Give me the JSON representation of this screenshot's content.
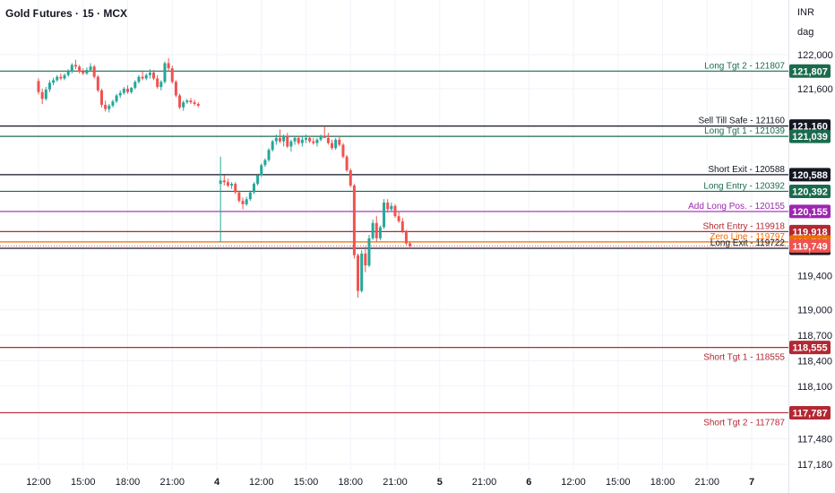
{
  "header": {
    "title": "Gold Futures · 15 · MCX",
    "currency": "INR",
    "timeframe": "dag"
  },
  "colors": {
    "up": "#26a69a",
    "down": "#ef5350",
    "green_line": "#1b6b4e",
    "black_line": "#131722",
    "purple_line": "#9c27b0",
    "red_line": "#b22833",
    "orange_line": "#ef6c00",
    "grid": "#f0f3fa"
  },
  "chart_data": {
    "type": "candlestick",
    "title": "Gold Futures · 15 · MCX",
    "ylim": [
      117000,
      122300
    ],
    "y_ticks": [
      122000,
      121600,
      119400,
      119000,
      118700,
      118400,
      118100,
      117480,
      117180
    ],
    "y_tick_labels": [
      "122,000",
      "121,600",
      "119,400",
      "119,000",
      "118,700",
      "118,400",
      "118,100",
      "117,480",
      "117,180"
    ],
    "x_ticks": [
      {
        "label": "12:00",
        "t": 0
      },
      {
        "label": "15:00",
        "t": 12
      },
      {
        "label": "18:00",
        "t": 24
      },
      {
        "label": "21:00",
        "t": 36
      },
      {
        "label": "4",
        "t": 48
      },
      {
        "label": "12:00",
        "t": 60
      },
      {
        "label": "15:00",
        "t": 72
      },
      {
        "label": "18:00",
        "t": 84
      },
      {
        "label": "21:00",
        "t": 96
      },
      {
        "label": "5",
        "t": 108
      },
      {
        "label": "21:00",
        "t": 120
      },
      {
        "label": "6",
        "t": 132
      },
      {
        "label": "12:00",
        "t": 144
      },
      {
        "label": "15:00",
        "t": 156
      },
      {
        "label": "18:00",
        "t": 168
      },
      {
        "label": "21:00",
        "t": 180
      },
      {
        "label": "7",
        "t": 192
      }
    ],
    "levels": [
      {
        "label": "Long Tgt 2 - 121807",
        "value": 121807,
        "tag": "121,807",
        "color": "green"
      },
      {
        "label": "Sell Till Safe - 121160",
        "value": 121160,
        "tag": "121,160",
        "color": "black"
      },
      {
        "label": "Long Tgt 1 - 121039",
        "value": 121039,
        "tag": "121,039",
        "color": "green"
      },
      {
        "label": "Short Exit - 120588",
        "value": 120588,
        "tag": "120,588",
        "color": "black"
      },
      {
        "label": "Long Entry - 120392",
        "value": 120392,
        "tag": "120,392",
        "color": "green"
      },
      {
        "label": "Add Long Pos. - 120155",
        "value": 120155,
        "tag": "120,155",
        "color": "purple"
      },
      {
        "label": "Short Entry - 119918",
        "value": 119918,
        "tag": "119,918",
        "color": "red"
      },
      {
        "label": "Zero Line - 119797",
        "value": 119797,
        "tag": "119,797",
        "color": "orange"
      },
      {
        "label": "Long Exit - 119722",
        "value": 119722,
        "tag": "119,722",
        "color": "black"
      },
      {
        "label": "Short Tgt 1 - 118555",
        "value": 118555,
        "tag": "118,555",
        "color": "red"
      },
      {
        "label": "Short Tgt 2 - 117787",
        "value": 117787,
        "tag": "117,787",
        "color": "red"
      }
    ],
    "current_price": {
      "value": 119749,
      "tag": "119,749"
    },
    "candles": [
      [
        0,
        121690,
        121720,
        121530,
        121560
      ],
      [
        1,
        121560,
        121600,
        121420,
        121480
      ],
      [
        2,
        121480,
        121620,
        121460,
        121590
      ],
      [
        3,
        121590,
        121700,
        121560,
        121670
      ],
      [
        4,
        121670,
        121730,
        121640,
        121700
      ],
      [
        5,
        121700,
        121760,
        121680,
        121740
      ],
      [
        6,
        121740,
        121780,
        121700,
        121720
      ],
      [
        7,
        121720,
        121780,
        121700,
        121760
      ],
      [
        8,
        121760,
        121830,
        121740,
        121800
      ],
      [
        9,
        121800,
        121900,
        121780,
        121880
      ],
      [
        10,
        121880,
        121940,
        121830,
        121860
      ],
      [
        11,
        121860,
        121880,
        121780,
        121800
      ],
      [
        12,
        121800,
        121840,
        121760,
        121780
      ],
      [
        13,
        121780,
        121850,
        121760,
        121820
      ],
      [
        14,
        121820,
        121900,
        121800,
        121860
      ],
      [
        15,
        121860,
        121880,
        121720,
        121740
      ],
      [
        16,
        121740,
        121760,
        121560,
        121580
      ],
      [
        17,
        121580,
        121600,
        121380,
        121410
      ],
      [
        18,
        121410,
        121460,
        121330,
        121360
      ],
      [
        19,
        121360,
        121420,
        121320,
        121400
      ],
      [
        20,
        121400,
        121470,
        121380,
        121450
      ],
      [
        21,
        121450,
        121540,
        121430,
        121520
      ],
      [
        22,
        121520,
        121580,
        121490,
        121550
      ],
      [
        23,
        121550,
        121620,
        121530,
        121600
      ],
      [
        24,
        121600,
        121640,
        121540,
        121560
      ],
      [
        25,
        121560,
        121620,
        121540,
        121610
      ],
      [
        26,
        121610,
        121700,
        121590,
        121680
      ],
      [
        27,
        121680,
        121760,
        121660,
        121740
      ],
      [
        28,
        121740,
        121800,
        121700,
        121720
      ],
      [
        29,
        121720,
        121780,
        121700,
        121760
      ],
      [
        30,
        121760,
        121830,
        121720,
        121790
      ],
      [
        31,
        121790,
        121820,
        121700,
        121720
      ],
      [
        32,
        121720,
        121760,
        121600,
        121620
      ],
      [
        33,
        121620,
        121700,
        121580,
        121680
      ],
      [
        34,
        121680,
        121920,
        121660,
        121900
      ],
      [
        35,
        121900,
        121960,
        121800,
        121840
      ],
      [
        36,
        121840,
        121870,
        121660,
        121680
      ],
      [
        37,
        121680,
        121700,
        121500,
        121520
      ],
      [
        38,
        121520,
        121540,
        121360,
        121380
      ],
      [
        39,
        121380,
        121460,
        121340,
        121440
      ],
      [
        40,
        121440,
        121480,
        121420,
        121460
      ],
      [
        41,
        121460,
        121490,
        121420,
        121440
      ],
      [
        42,
        121440,
        121470,
        121400,
        121420
      ],
      [
        43,
        121420,
        121440,
        121380,
        121400
      ],
      [
        49,
        120480,
        120800,
        119790,
        120520
      ],
      [
        50,
        120520,
        120580,
        120460,
        120500
      ],
      [
        51,
        120500,
        120540,
        120440,
        120460
      ],
      [
        52,
        120460,
        120500,
        120420,
        120480
      ],
      [
        53,
        120480,
        120500,
        120360,
        120380
      ],
      [
        54,
        120380,
        120400,
        120260,
        120280
      ],
      [
        55,
        120280,
        120320,
        120180,
        120240
      ],
      [
        56,
        120240,
        120330,
        120220,
        120300
      ],
      [
        57,
        120300,
        120400,
        120280,
        120380
      ],
      [
        58,
        120380,
        120500,
        120360,
        120480
      ],
      [
        59,
        120480,
        120600,
        120460,
        120580
      ],
      [
        60,
        120580,
        120720,
        120560,
        120700
      ],
      [
        61,
        120700,
        120780,
        120680,
        120760
      ],
      [
        62,
        120760,
        120900,
        120740,
        120880
      ],
      [
        63,
        120880,
        121000,
        120860,
        120980
      ],
      [
        64,
        120980,
        121060,
        120940,
        121020
      ],
      [
        65,
        121020,
        121120,
        120960,
        120980
      ],
      [
        66,
        120980,
        121060,
        120920,
        121040
      ],
      [
        67,
        121040,
        121080,
        120900,
        120920
      ],
      [
        68,
        120920,
        121000,
        120860,
        120980
      ],
      [
        69,
        120980,
        121040,
        120940,
        121020
      ],
      [
        70,
        121020,
        121040,
        120940,
        120960
      ],
      [
        71,
        120960,
        121040,
        120920,
        121000
      ],
      [
        72,
        121000,
        121060,
        120960,
        121020
      ],
      [
        73,
        121020,
        121040,
        120960,
        120980
      ],
      [
        74,
        120980,
        121020,
        120940,
        120960
      ],
      [
        75,
        120960,
        121020,
        120920,
        121000
      ],
      [
        76,
        121000,
        121060,
        120980,
        121040
      ],
      [
        77,
        121040,
        121160,
        121020,
        121020
      ],
      [
        78,
        121020,
        121080,
        120940,
        120960
      ],
      [
        79,
        120960,
        121000,
        120880,
        120900
      ],
      [
        80,
        120900,
        121020,
        120880,
        121000
      ],
      [
        81,
        121000,
        121040,
        120920,
        120940
      ],
      [
        82,
        120940,
        120960,
        120780,
        120800
      ],
      [
        83,
        120800,
        120820,
        120620,
        120640
      ],
      [
        84,
        120640,
        120660,
        120440,
        120460
      ],
      [
        85,
        120460,
        120480,
        119600,
        119640
      ],
      [
        86,
        119640,
        119660,
        119140,
        119220
      ],
      [
        87,
        119220,
        119700,
        119200,
        119660
      ],
      [
        88,
        119660,
        119740,
        119440,
        119520
      ],
      [
        89,
        119520,
        119880,
        119500,
        119840
      ],
      [
        90,
        119840,
        120060,
        119820,
        120020
      ],
      [
        91,
        120020,
        120100,
        119800,
        119840
      ],
      [
        92,
        119840,
        119990,
        119820,
        119970
      ],
      [
        93,
        119970,
        120300,
        119950,
        120260
      ],
      [
        94,
        120260,
        120300,
        120140,
        120180
      ],
      [
        95,
        120180,
        120260,
        120160,
        120220
      ],
      [
        96,
        120220,
        120240,
        120080,
        120100
      ],
      [
        97,
        120100,
        120160,
        120020,
        120040
      ],
      [
        98,
        120040,
        120080,
        119900,
        119920
      ],
      [
        99,
        119920,
        119940,
        119760,
        119780
      ],
      [
        100,
        119780,
        119800,
        119720,
        119749
      ]
    ]
  }
}
